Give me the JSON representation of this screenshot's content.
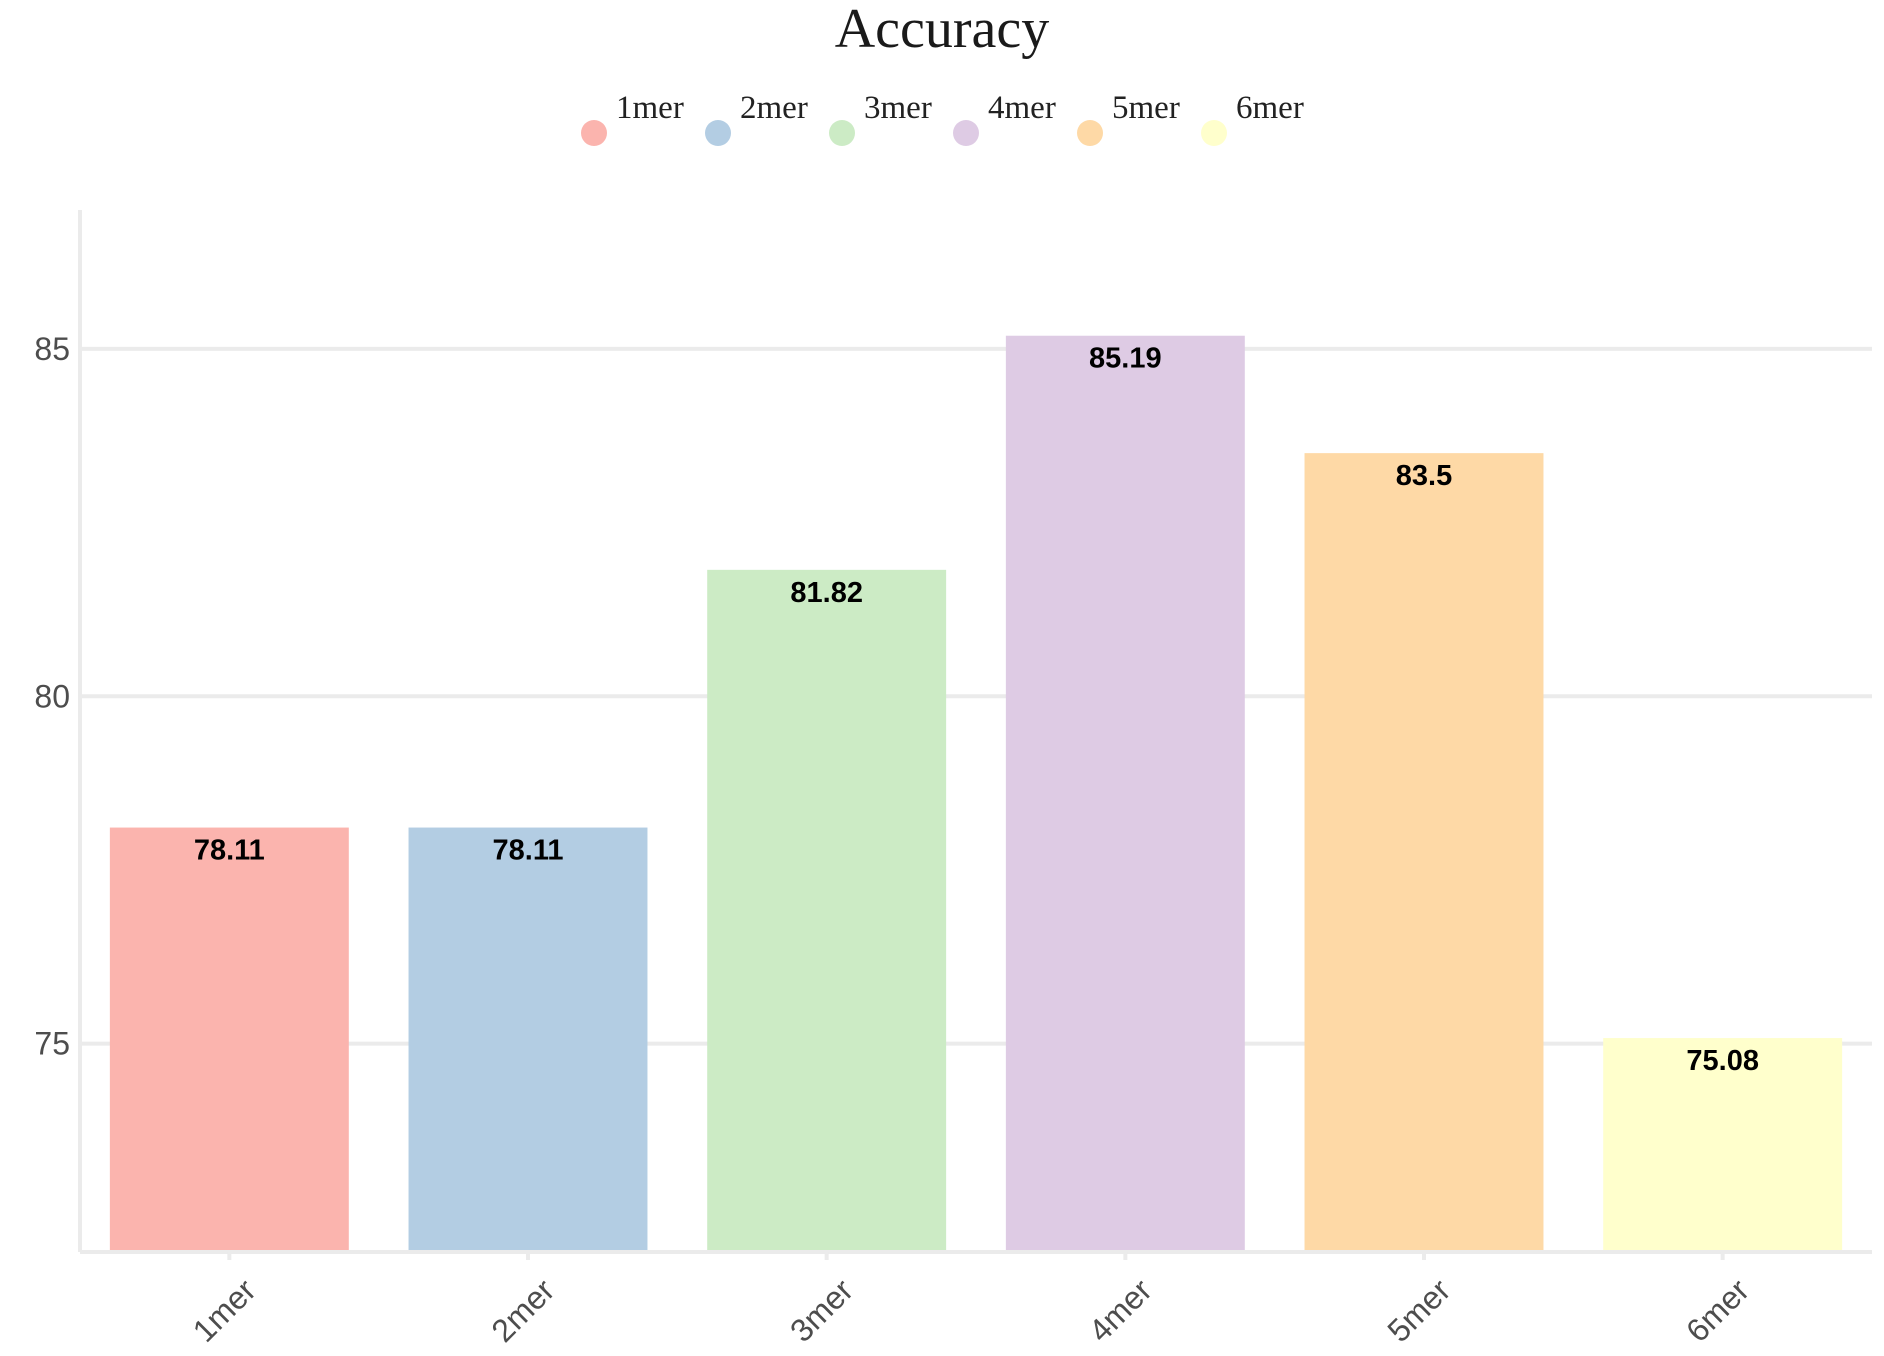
{
  "chart_data": {
    "type": "bar",
    "title": "Accuracy",
    "xlabel": "",
    "ylabel": "",
    "categories": [
      "1mer",
      "2mer",
      "3mer",
      "4mer",
      "5mer",
      "6mer"
    ],
    "values": [
      78.11,
      78.11,
      81.82,
      85.19,
      83.5,
      75.08
    ],
    "value_labels": [
      "78.11",
      "78.11",
      "81.82",
      "85.19",
      "83.5",
      "75.08"
    ],
    "colors": [
      "#FBB4AE",
      "#B3CDE3",
      "#CCEBC5",
      "#DECBE4",
      "#FED9A6",
      "#FFFFCC"
    ],
    "ylim": [
      72,
      87
    ],
    "yticks": [
      75,
      80,
      85
    ],
    "ytick_labels": [
      "75",
      "80",
      "85"
    ],
    "grid": true,
    "legend": {
      "placement": "top-center",
      "entries": [
        "1mer",
        "2mer",
        "3mer",
        "4mer",
        "5mer",
        "6mer"
      ]
    }
  }
}
